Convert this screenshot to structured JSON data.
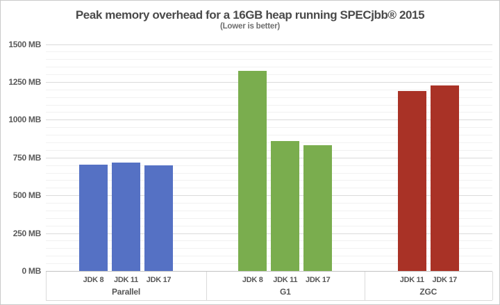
{
  "chart_data": {
    "type": "bar",
    "title": "Peak memory overhead for a 16GB heap running SPECjbb® 2015",
    "subtitle": "(Lower is better)",
    "xlabel": "",
    "ylabel": "",
    "unit": "MB",
    "ylim": [
      0,
      1500
    ],
    "y_major_step": 250,
    "y_minor_step": 50,
    "y_tick_labels": [
      "0 MB",
      "250 MB",
      "500 MB",
      "750 MB",
      "1000 MB",
      "1250 MB",
      "1500 MB"
    ],
    "grid": "horizontal major and minor gridlines",
    "legend_position": "none",
    "groups": [
      {
        "name": "Parallel",
        "color": "#5571C4",
        "bars": [
          {
            "label": "JDK 8",
            "value": 705
          },
          {
            "label": "JDK 11",
            "value": 715
          },
          {
            "label": "JDK 17",
            "value": 700
          }
        ]
      },
      {
        "name": "G1",
        "color": "#7AAD4E",
        "bars": [
          {
            "label": "JDK 8",
            "value": 1325
          },
          {
            "label": "JDK 11",
            "value": 860
          },
          {
            "label": "JDK 17",
            "value": 830
          }
        ]
      },
      {
        "name": "ZGC",
        "color": "#A93226",
        "bars": [
          {
            "label": "JDK 11",
            "value": 1190
          },
          {
            "label": "JDK 17",
            "value": 1225
          }
        ]
      }
    ]
  }
}
